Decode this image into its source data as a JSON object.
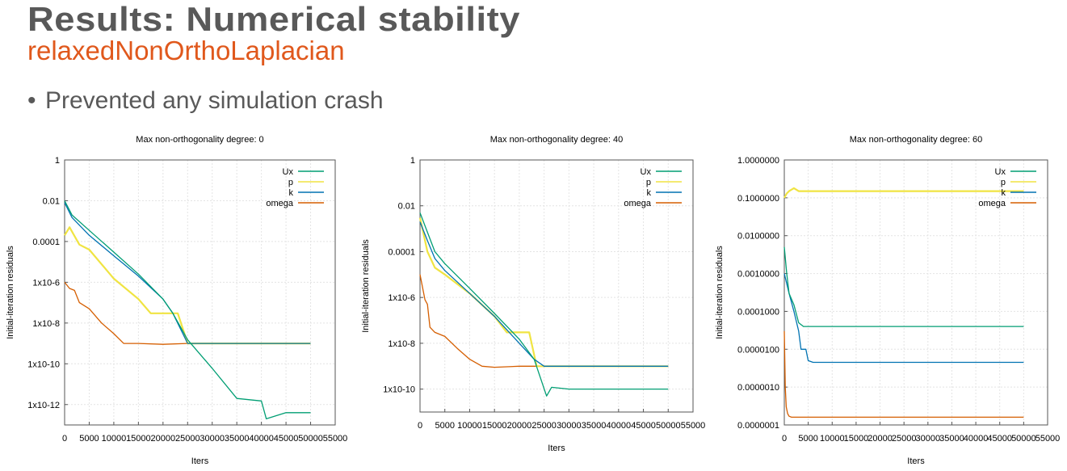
{
  "slide": {
    "title": "Results: Numerical stability",
    "subtitle": "relaxedNonOrthoLaplacian",
    "bullet": "Prevented any simulation crash",
    "bullet_marker": "•"
  },
  "colors": {
    "Ux": "#009e73",
    "p": "#f0e442",
    "k": "#0072b2",
    "omega": "#d55e00",
    "title": "#595959",
    "accent": "#e0581c"
  },
  "chart_data": [
    {
      "type": "line",
      "title": "Max non-orthogonality degree: 0",
      "xlabel": "Iters",
      "ylabel": "Initial-iteration residuals",
      "yscale": "log",
      "legend": "top-right",
      "grid": true,
      "xlim": [
        0,
        55000
      ],
      "ylim": [
        1e-13,
        1
      ],
      "xticks": [
        "0",
        "5000",
        "10000",
        "15000",
        "20000",
        "25000",
        "30000",
        "35000",
        "40000",
        "45000",
        "50000",
        "55000"
      ],
      "ytick_values": [
        1,
        0.01,
        0.0001,
        1e-06,
        1e-08,
        1e-10,
        1e-12
      ],
      "yticks": [
        "1",
        "0.01",
        "0.0001",
        "1x10-6",
        "1x10-8",
        "1x10-10",
        "1x10-12"
      ],
      "series": [
        {
          "name": "Ux",
          "x": [
            0,
            1500,
            5000,
            10000,
            15000,
            20000,
            22000,
            25000,
            30000,
            35000,
            40000,
            41000,
            45000,
            50000
          ],
          "y": [
            0.01,
            0.002,
            0.00035,
            3e-05,
            2.5e-06,
            1.5e-07,
            3e-08,
            1.5e-09,
            6e-11,
            2e-12,
            1.5e-12,
            2e-13,
            4e-13,
            4e-13
          ]
        },
        {
          "name": "p",
          "x": [
            0,
            1000,
            3000,
            5000,
            10000,
            15000,
            17500,
            23000,
            25000,
            30000,
            50000
          ],
          "y": [
            0.0002,
            0.0005,
            7e-05,
            4e-05,
            1.5e-06,
            1.5e-07,
            3e-08,
            3e-08,
            1e-09,
            1e-09,
            1e-09
          ]
        },
        {
          "name": "k",
          "x": [
            0,
            1500,
            5000,
            10000,
            15000,
            20000,
            22000,
            25000,
            30000,
            50000
          ],
          "y": [
            0.008,
            0.0015,
            0.0002,
            2e-05,
            2e-06,
            1.5e-07,
            3e-08,
            1e-09,
            1e-09,
            1e-09
          ]
        },
        {
          "name": "omega",
          "x": [
            0,
            1000,
            2000,
            3000,
            5000,
            7500,
            10000,
            12000,
            15000,
            20000,
            25000,
            50000
          ],
          "y": [
            1e-06,
            5e-07,
            4e-07,
            1e-07,
            5e-08,
            1e-08,
            3e-09,
            1e-09,
            1e-09,
            9e-10,
            1e-09,
            1e-09
          ]
        }
      ]
    },
    {
      "type": "line",
      "title": "Max non-orthogonality degree: 40",
      "xlabel": "Iters",
      "ylabel": "Initial-iteration residuals",
      "yscale": "log",
      "legend": "top-right",
      "grid": true,
      "xlim": [
        0,
        55000
      ],
      "ylim": [
        1e-11,
        1
      ],
      "xticks": [
        "0",
        "5000",
        "10000",
        "15000",
        "20000",
        "25000",
        "30000",
        "35000",
        "40000",
        "45000",
        "50000",
        "55000"
      ],
      "ytick_values": [
        1,
        0.01,
        0.0001,
        1e-06,
        1e-08,
        1e-10
      ],
      "yticks": [
        "1",
        "0.01",
        "0.0001",
        "1x10-6",
        "1x10-8",
        "1x10-10"
      ],
      "series": [
        {
          "name": "Ux",
          "x": [
            0,
            1500,
            3000,
            5000,
            10000,
            15000,
            20000,
            23000,
            25500,
            26500,
            30000,
            40000,
            50000
          ],
          "y": [
            0.005,
            0.0007,
            0.0001,
            3e-05,
            2.5e-06,
            2e-07,
            1.5e-08,
            2e-09,
            5e-11,
            1.2e-10,
            1e-10,
            1e-10,
            1e-10
          ]
        },
        {
          "name": "p",
          "x": [
            0,
            1500,
            3000,
            5000,
            10000,
            15000,
            17500,
            22000,
            23500,
            25000,
            30000,
            50000
          ],
          "y": [
            0.003,
            0.0001,
            2e-05,
            1e-05,
            1.5e-06,
            1.5e-07,
            3e-08,
            3e-08,
            1e-09,
            1e-09,
            1e-09,
            1e-09
          ]
        },
        {
          "name": "k",
          "x": [
            0,
            1500,
            3000,
            5000,
            10000,
            15000,
            20000,
            23000,
            25000,
            30000,
            50000
          ],
          "y": [
            0.002,
            0.0003,
            5e-05,
            1.5e-05,
            1.5e-06,
            1.5e-07,
            1e-08,
            2e-09,
            1e-09,
            1e-09,
            1e-09
          ]
        },
        {
          "name": "omega",
          "x": [
            0,
            1000,
            1500,
            2000,
            3000,
            5000,
            7500,
            10000,
            12500,
            15000,
            20000,
            25000,
            50000
          ],
          "y": [
            1e-05,
            8e-07,
            5e-07,
            5e-08,
            3e-08,
            2e-08,
            6e-09,
            2e-09,
            1e-09,
            9e-10,
            1e-09,
            1e-09,
            1e-09
          ]
        }
      ]
    },
    {
      "type": "line",
      "title": "Max non-orthogonality degree: 60",
      "xlabel": "Iters",
      "ylabel": "Initial-iteration residuals",
      "yscale": "log",
      "legend": "top-right",
      "grid": true,
      "xlim": [
        0,
        55000
      ],
      "ylim": [
        1e-07,
        1
      ],
      "xticks": [
        "0",
        "5000",
        "10000",
        "15000",
        "20000",
        "25000",
        "30000",
        "35000",
        "40000",
        "45000",
        "50000",
        "55000"
      ],
      "ytick_values": [
        1,
        0.1,
        0.01,
        0.001,
        0.0001,
        1e-05,
        1e-06,
        1e-07
      ],
      "yticks": [
        "1.0000000",
        "0.1000000",
        "0.0100000",
        "0.0010000",
        "0.0001000",
        "0.0000100",
        "0.0000010",
        "0.0000001"
      ],
      "series": [
        {
          "name": "Ux",
          "x": [
            0,
            500,
            1000,
            2000,
            3000,
            4000,
            5000,
            50000
          ],
          "y": [
            0.005,
            0.001,
            0.0003,
            0.00015,
            5e-05,
            4e-05,
            4e-05,
            4e-05
          ]
        },
        {
          "name": "p",
          "x": [
            0,
            500,
            1000,
            2000,
            3000,
            5000,
            50000
          ],
          "y": [
            0.1,
            0.13,
            0.15,
            0.18,
            0.15,
            0.15,
            0.15
          ]
        },
        {
          "name": "k",
          "x": [
            0,
            1000,
            2000,
            3000,
            3500,
            4500,
            5000,
            6000,
            50000
          ],
          "y": [
            0.001,
            0.0003,
            0.0001,
            3e-05,
            1e-05,
            1e-05,
            5e-06,
            4.5e-06,
            4.5e-06
          ]
        },
        {
          "name": "omega",
          "x": [
            0,
            200,
            400,
            700,
            1000,
            1500,
            2000,
            50000
          ],
          "y": [
            3e-05,
            1e-06,
            3e-07,
            2e-07,
            1.7e-07,
            1.6e-07,
            1.6e-07,
            1.6e-07
          ]
        }
      ]
    }
  ]
}
